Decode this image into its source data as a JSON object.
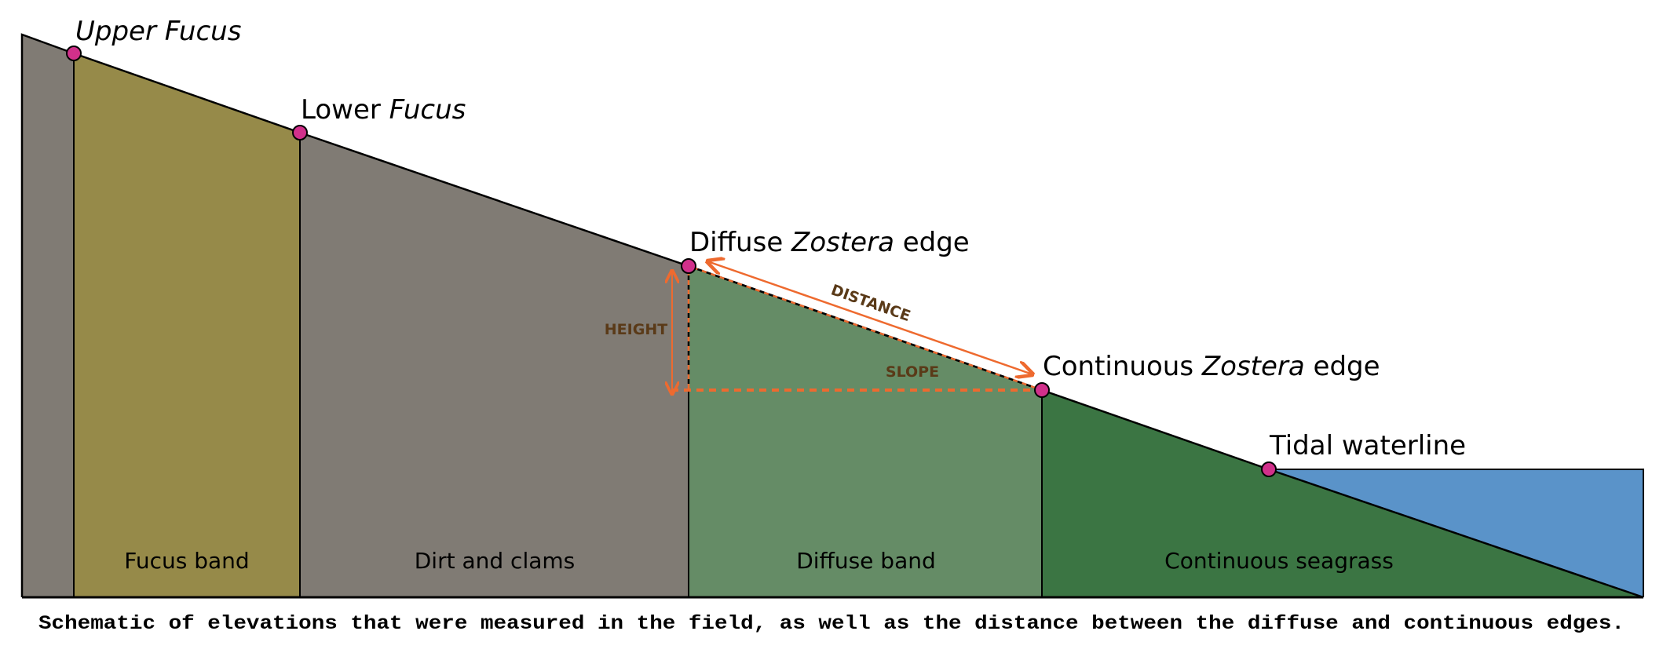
{
  "colors": {
    "upper_shore": "#807b74",
    "fucus_band": "#968a49",
    "dirt_band": "#807b74",
    "diffuse_band": "#658c66",
    "continuous_band": "#3b7543",
    "water": "#5a93c9",
    "point_marker": "#d1308b",
    "measurement": "#ee6a2f",
    "measurement_text": "#5a3a18"
  },
  "points": {
    "upper_fucus": {
      "prefix": "",
      "italic": "Upper Fucus",
      "suffix": ""
    },
    "lower_fucus": {
      "prefix": "Lower ",
      "italic": "Fucus",
      "suffix": ""
    },
    "diffuse_zostera": {
      "prefix": "Diffuse ",
      "italic": "Zostera",
      "suffix": " edge"
    },
    "continuous_zostera": {
      "prefix": "Continuous ",
      "italic": "Zostera",
      "suffix": " edge"
    },
    "tidal_waterline": {
      "prefix": "Tidal waterline",
      "italic": "",
      "suffix": ""
    }
  },
  "bands": {
    "fucus": "Fucus band",
    "dirt": "Dirt and clams",
    "diffuse": "Diffuse band",
    "continuous": "Continuous seagrass"
  },
  "measurements": {
    "height": "HEIGHT",
    "distance": "DISTANCE",
    "slope": "SLOPE"
  },
  "caption": "Schematic of elevations that were measured in the field, as well as the distance between the diffuse and continuous edges."
}
